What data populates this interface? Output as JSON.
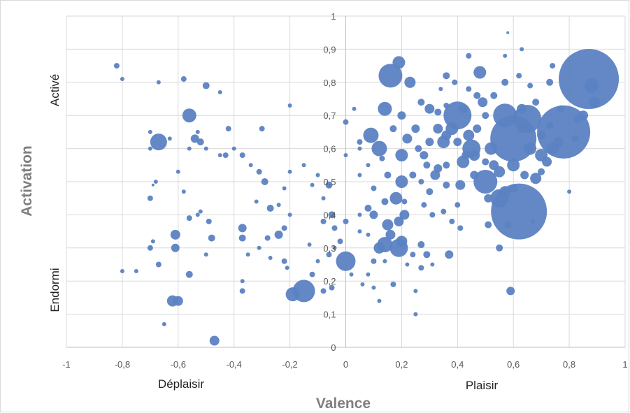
{
  "chart_data": {
    "type": "scatter",
    "variant": "bubble",
    "title": "",
    "xlabel": "Valence",
    "ylabel": "Activation",
    "xlim": [
      -1,
      1
    ],
    "ylim": [
      0,
      1
    ],
    "x_ticks": [
      -1,
      -0.8,
      -0.6,
      -0.4,
      -0.2,
      0,
      0.2,
      0.4,
      0.6,
      0.8,
      1
    ],
    "y_ticks": [
      0,
      0.1,
      0.2,
      0.3,
      0.4,
      0.5,
      0.6,
      0.7,
      0.8,
      0.9,
      1
    ],
    "x_tick_labels": [
      "-1",
      "-0,8",
      "-0,6",
      "-0,4",
      "-0,2",
      "0",
      "0,2",
      "0,4",
      "0,6",
      "0,8",
      "1"
    ],
    "y_tick_labels": [
      "0",
      "0,1",
      "0,2",
      "0,3",
      "0,4",
      "0,5",
      "0,6",
      "0,7",
      "0,8",
      "0,9",
      "1"
    ],
    "grid": true,
    "color": "#5b82c2",
    "opacity": 0.95,
    "annotations": {
      "x_low": "Déplaisir",
      "x_high": "Plaisir",
      "y_high": "Activé",
      "y_low": "Endormi"
    },
    "points": [
      [
        0.87,
        0.81,
        43
      ],
      [
        0.78,
        0.65,
        38
      ],
      [
        0.62,
        0.41,
        40
      ],
      [
        0.6,
        0.63,
        33
      ],
      [
        0.65,
        0.69,
        20
      ],
      [
        0.4,
        0.7,
        20
      ],
      [
        0.57,
        0.7,
        17
      ],
      [
        0.5,
        0.5,
        17
      ],
      [
        0.45,
        0.6,
        13
      ],
      [
        0.55,
        0.45,
        13
      ],
      [
        0.16,
        0.82,
        17
      ],
      [
        0.19,
        0.86,
        9
      ],
      [
        0.14,
        0.72,
        10
      ],
      [
        0.09,
        0.64,
        11
      ],
      [
        0.12,
        0.6,
        11
      ],
      [
        0.2,
        0.58,
        9
      ],
      [
        0.2,
        0.5,
        9
      ],
      [
        0.18,
        0.45,
        9
      ],
      [
        0.15,
        0.37,
        8
      ],
      [
        0.19,
        0.3,
        13
      ],
      [
        0.14,
        0.31,
        11
      ],
      [
        0.12,
        0.3,
        8
      ],
      [
        0.19,
        0.38,
        7
      ],
      [
        0.21,
        0.4,
        7
      ],
      [
        0.23,
        0.8,
        8
      ],
      [
        0.3,
        0.72,
        7
      ],
      [
        0.35,
        0.62,
        9
      ],
      [
        0.32,
        0.52,
        7
      ],
      [
        0.38,
        0.66,
        9
      ],
      [
        0.42,
        0.56,
        9
      ],
      [
        0.44,
        0.64,
        8
      ],
      [
        0.48,
        0.83,
        9
      ],
      [
        0.49,
        0.74,
        7
      ],
      [
        0.52,
        0.6,
        9
      ],
      [
        0.55,
        0.53,
        8
      ],
      [
        0.6,
        0.55,
        9
      ],
      [
        0.63,
        0.72,
        7
      ],
      [
        0.66,
        0.6,
        9
      ],
      [
        0.68,
        0.51,
        8
      ],
      [
        0.7,
        0.58,
        9
      ],
      [
        0.74,
        0.6,
        9
      ],
      [
        0.76,
        0.62,
        7
      ],
      [
        0.88,
        0.79,
        10
      ],
      [
        0.89,
        0.74,
        8
      ],
      [
        0.85,
        0.7,
        7
      ],
      [
        0.46,
        0.58,
        8
      ],
      [
        0.41,
        0.49,
        7
      ],
      [
        0.36,
        0.64,
        7
      ],
      [
        0.33,
        0.66,
        7
      ],
      [
        0.25,
        0.66,
        6
      ],
      [
        0.22,
        0.63,
        7
      ],
      [
        0.28,
        0.58,
        6
      ],
      [
        0.29,
        0.55,
        5
      ],
      [
        0.33,
        0.54,
        6
      ],
      [
        0.36,
        0.49,
        5
      ],
      [
        0.3,
        0.47,
        5
      ],
      [
        0.28,
        0.43,
        4
      ],
      [
        0.35,
        0.41,
        4
      ],
      [
        0.31,
        0.4,
        4
      ],
      [
        0.4,
        0.43,
        4
      ],
      [
        0.38,
        0.38,
        4
      ],
      [
        0.41,
        0.36,
        4
      ],
      [
        0.37,
        0.28,
        6
      ],
      [
        0.29,
        0.28,
        5
      ],
      [
        0.27,
        0.24,
        4
      ],
      [
        0.25,
        0.17,
        3
      ],
      [
        0.25,
        0.1,
        3
      ],
      [
        0.1,
        0.18,
        3
      ],
      [
        0.12,
        0.14,
        3
      ],
      [
        0.59,
        0.17,
        6
      ],
      [
        0.51,
        0.37,
        5
      ],
      [
        0.55,
        0.3,
        5
      ],
      [
        0.58,
        0.37,
        5
      ],
      [
        0.67,
        0.38,
        3
      ],
      [
        0.8,
        0.47,
        3
      ],
      [
        0.73,
        0.8,
        5
      ],
      [
        0.74,
        0.85,
        4
      ],
      [
        0.63,
        0.9,
        3
      ],
      [
        0.58,
        0.95,
        2
      ],
      [
        0.57,
        0.88,
        3
      ],
      [
        0.44,
        0.88,
        4
      ],
      [
        0.47,
        0.76,
        5
      ],
      [
        0.39,
        0.8,
        4
      ],
      [
        0.36,
        0.82,
        5
      ],
      [
        0.34,
        0.78,
        3
      ],
      [
        0.03,
        0.72,
        3
      ],
      [
        0.0,
        0.68,
        4
      ],
      [
        0.05,
        0.62,
        4
      ],
      [
        0.0,
        0.58,
        3
      ],
      [
        0.05,
        0.6,
        3
      ],
      [
        0.05,
        0.52,
        3
      ],
      [
        0.08,
        0.55,
        3
      ],
      [
        0.08,
        0.42,
        5
      ],
      [
        0.1,
        0.48,
        4
      ],
      [
        0.1,
        0.4,
        6
      ],
      [
        0.05,
        0.4,
        3
      ],
      [
        0.0,
        0.38,
        4
      ],
      [
        0.05,
        0.35,
        3
      ],
      [
        -0.02,
        0.32,
        4
      ],
      [
        0.0,
        0.26,
        14
      ],
      [
        0.02,
        0.22,
        3
      ],
      [
        0.06,
        0.19,
        3
      ],
      [
        0.1,
        0.26,
        4
      ],
      [
        0.08,
        0.22,
        3
      ],
      [
        -0.15,
        0.17,
        16
      ],
      [
        -0.19,
        0.16,
        10
      ],
      [
        -0.12,
        0.22,
        4
      ],
      [
        -0.08,
        0.17,
        4
      ],
      [
        -0.05,
        0.18,
        4
      ],
      [
        -0.1,
        0.26,
        3
      ],
      [
        -0.13,
        0.31,
        3
      ],
      [
        -0.06,
        0.28,
        4
      ],
      [
        -0.04,
        0.3,
        3
      ],
      [
        -0.04,
        0.36,
        4
      ],
      [
        -0.08,
        0.38,
        4
      ],
      [
        -0.05,
        0.4,
        5
      ],
      [
        -0.08,
        0.45,
        3
      ],
      [
        -0.06,
        0.49,
        5
      ],
      [
        -0.1,
        0.52,
        3
      ],
      [
        -0.15,
        0.55,
        3
      ],
      [
        -0.12,
        0.49,
        3
      ],
      [
        -0.2,
        0.53,
        3
      ],
      [
        -0.22,
        0.48,
        3
      ],
      [
        -0.2,
        0.4,
        3
      ],
      [
        -0.24,
        0.43,
        3
      ],
      [
        -0.22,
        0.36,
        4
      ],
      [
        -0.24,
        0.34,
        6
      ],
      [
        -0.28,
        0.33,
        4
      ],
      [
        -0.27,
        0.42,
        5
      ],
      [
        -0.29,
        0.5,
        5
      ],
      [
        -0.32,
        0.44,
        3
      ],
      [
        -0.31,
        0.53,
        4
      ],
      [
        -0.34,
        0.55,
        3
      ],
      [
        -0.37,
        0.58,
        4
      ],
      [
        -0.4,
        0.6,
        3
      ],
      [
        -0.43,
        0.58,
        4
      ],
      [
        -0.45,
        0.58,
        3
      ],
      [
        -0.37,
        0.33,
        5
      ],
      [
        -0.37,
        0.36,
        6
      ],
      [
        -0.35,
        0.28,
        3
      ],
      [
        -0.31,
        0.3,
        3
      ],
      [
        -0.27,
        0.27,
        3
      ],
      [
        -0.22,
        0.26,
        4
      ],
      [
        -0.21,
        0.24,
        3
      ],
      [
        -0.37,
        0.2,
        3
      ],
      [
        -0.37,
        0.17,
        4
      ],
      [
        -0.3,
        0.66,
        4
      ],
      [
        -0.42,
        0.66,
        4
      ],
      [
        -0.45,
        0.77,
        3
      ],
      [
        -0.5,
        0.79,
        5
      ],
      [
        -0.58,
        0.81,
        4
      ],
      [
        -0.56,
        0.7,
        10
      ],
      [
        -0.54,
        0.63,
        6
      ],
      [
        -0.52,
        0.62,
        5
      ],
      [
        -0.5,
        0.6,
        3
      ],
      [
        -0.53,
        0.65,
        3
      ],
      [
        -0.56,
        0.6,
        3
      ],
      [
        -0.67,
        0.62,
        12
      ],
      [
        -0.63,
        0.63,
        3
      ],
      [
        -0.7,
        0.65,
        3
      ],
      [
        -0.7,
        0.6,
        3
      ],
      [
        -0.6,
        0.53,
        3
      ],
      [
        -0.68,
        0.5,
        3
      ],
      [
        -0.69,
        0.49,
        2
      ],
      [
        -0.58,
        0.47,
        3
      ],
      [
        -0.7,
        0.45,
        4
      ],
      [
        -0.53,
        0.4,
        3
      ],
      [
        -0.56,
        0.39,
        4
      ],
      [
        -0.52,
        0.41,
        3
      ],
      [
        -0.49,
        0.38,
        4
      ],
      [
        -0.48,
        0.33,
        5
      ],
      [
        -0.61,
        0.34,
        7
      ],
      [
        -0.61,
        0.3,
        6
      ],
      [
        -0.7,
        0.3,
        4
      ],
      [
        -0.69,
        0.32,
        3
      ],
      [
        -0.5,
        0.28,
        3
      ],
      [
        -0.67,
        0.25,
        4
      ],
      [
        -0.56,
        0.22,
        5
      ],
      [
        -0.6,
        0.14,
        7
      ],
      [
        -0.62,
        0.14,
        8
      ],
      [
        -0.65,
        0.07,
        3
      ],
      [
        -0.47,
        0.02,
        7
      ],
      [
        -0.8,
        0.23,
        3
      ],
      [
        -0.75,
        0.23,
        3
      ],
      [
        -0.82,
        0.85,
        4
      ],
      [
        -0.8,
        0.81,
        3
      ],
      [
        -0.67,
        0.8,
        3
      ],
      [
        -0.2,
        0.73,
        3
      ],
      [
        0.16,
        0.34,
        7
      ],
      [
        0.2,
        0.32,
        8
      ],
      [
        0.27,
        0.31,
        5
      ],
      [
        0.08,
        0.34,
        3
      ],
      [
        0.14,
        0.26,
        3
      ],
      [
        0.22,
        0.25,
        3
      ],
      [
        0.31,
        0.25,
        3
      ],
      [
        0.24,
        0.28,
        4
      ],
      [
        0.17,
        0.19,
        4
      ],
      [
        0.47,
        0.66,
        6
      ],
      [
        0.53,
        0.55,
        7
      ],
      [
        0.57,
        0.47,
        8
      ],
      [
        0.63,
        0.66,
        6
      ],
      [
        0.68,
        0.74,
        5
      ],
      [
        0.7,
        0.64,
        6
      ],
      [
        0.73,
        0.67,
        5
      ],
      [
        0.77,
        0.72,
        5
      ],
      [
        0.83,
        0.69,
        6
      ],
      [
        0.82,
        0.63,
        5
      ],
      [
        0.72,
        0.56,
        7
      ],
      [
        0.7,
        0.53,
        5
      ],
      [
        0.64,
        0.52,
        6
      ],
      [
        0.6,
        0.48,
        6
      ],
      [
        0.51,
        0.45,
        6
      ],
      [
        0.46,
        0.52,
        6
      ],
      [
        0.5,
        0.56,
        5
      ],
      [
        0.4,
        0.62,
        6
      ],
      [
        0.42,
        0.72,
        6
      ],
      [
        0.44,
        0.78,
        4
      ],
      [
        0.5,
        0.7,
        5
      ],
      [
        0.53,
        0.76,
        5
      ],
      [
        0.57,
        0.8,
        5
      ],
      [
        0.62,
        0.82,
        4
      ],
      [
        0.66,
        0.79,
        4
      ],
      [
        0.27,
        0.74,
        5
      ],
      [
        0.3,
        0.62,
        6
      ],
      [
        0.26,
        0.6,
        5
      ],
      [
        0.33,
        0.71,
        5
      ],
      [
        0.36,
        0.73,
        4
      ],
      [
        0.2,
        0.7,
        6
      ],
      [
        0.17,
        0.66,
        5
      ],
      [
        0.13,
        0.57,
        4
      ],
      [
        0.24,
        0.52,
        5
      ],
      [
        0.15,
        0.52,
        5
      ],
      [
        0.14,
        0.44,
        5
      ],
      [
        0.21,
        0.44,
        4
      ],
      [
        0.27,
        0.5,
        4
      ],
      [
        0.36,
        0.55,
        5
      ],
      [
        0.43,
        0.58,
        6
      ]
    ]
  }
}
